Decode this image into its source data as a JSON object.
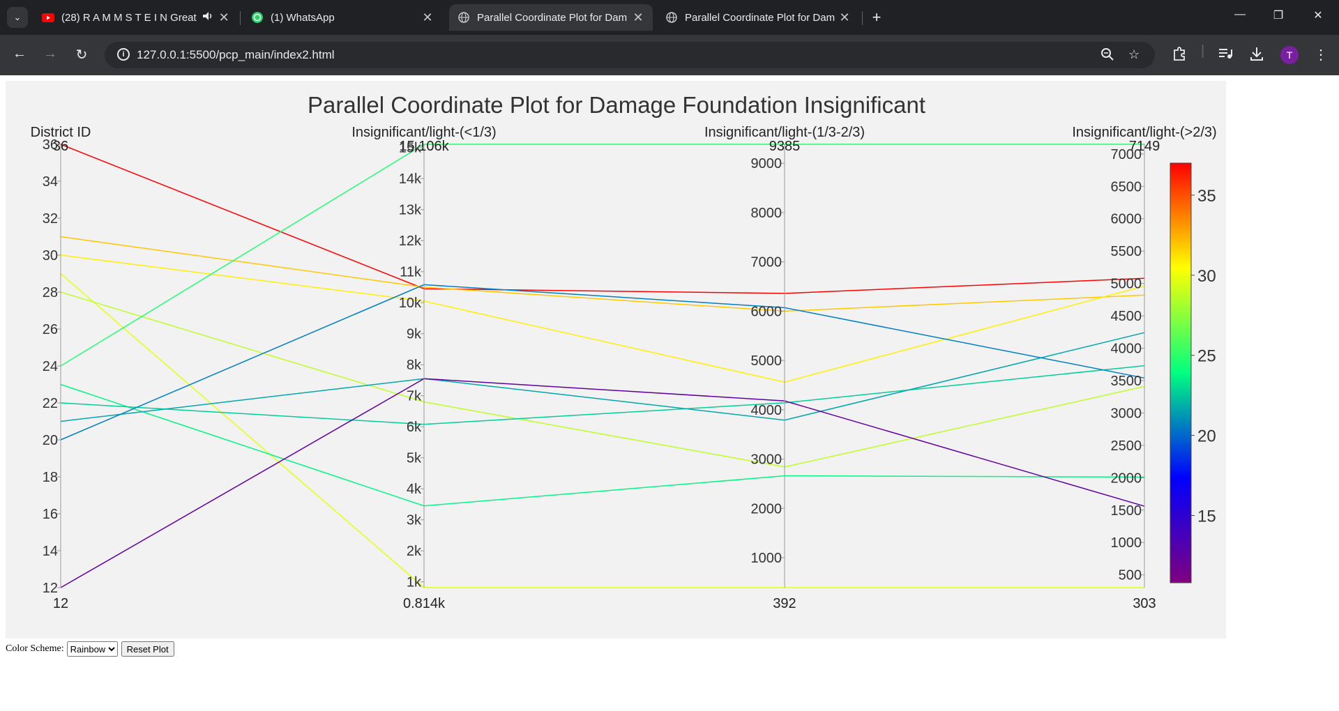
{
  "browser": {
    "tabs": [
      {
        "label": "(28) R A M M S T E I N Great",
        "favicon": "youtube-icon",
        "audio": true
      },
      {
        "label": "(1) WhatsApp",
        "favicon": "whatsapp-icon"
      },
      {
        "label": "Parallel Coordinate Plot for Dam",
        "favicon": "globe-icon",
        "active": true
      },
      {
        "label": "Parallel Coordinate Plot for Dam",
        "favicon": "globe-icon"
      }
    ],
    "url": "127.0.0.1:5500/pcp_main/index2.html",
    "profile_initial": "T"
  },
  "controls": {
    "color_scheme_label": "Color Scheme:",
    "color_scheme_value": "Rainbow",
    "reset_label": "Reset Plot"
  },
  "chart_data": {
    "type": "parallel-coordinates",
    "title": "Parallel Coordinate Plot for Damage Foundation Insignificant",
    "dimensions": [
      {
        "label": "District ID",
        "min": 12,
        "max": 36,
        "min_label": "12",
        "max_label": "36",
        "ticks": [
          12,
          14,
          16,
          18,
          20,
          22,
          24,
          26,
          28,
          30,
          32,
          34,
          36
        ],
        "tick_labels": [
          "12",
          "14",
          "16",
          "18",
          "20",
          "22",
          "24",
          "26",
          "28",
          "30",
          "32",
          "34",
          "36"
        ]
      },
      {
        "label": "Insignificant/light-(<1/3)",
        "min": 814,
        "max": 15106,
        "min_label": "0.814k",
        "max_label": "15.106k",
        "ticks": [
          1000,
          2000,
          3000,
          4000,
          5000,
          6000,
          7000,
          8000,
          9000,
          10000,
          11000,
          12000,
          13000,
          14000,
          15000
        ],
        "tick_labels": [
          "1k",
          "2k",
          "3k",
          "4k",
          "5k",
          "6k",
          "7k",
          "8k",
          "9k",
          "10k",
          "11k",
          "12k",
          "13k",
          "14k",
          "15k"
        ]
      },
      {
        "label": "Insignificant/light-(1/3-2/3)",
        "min": 392,
        "max": 9385,
        "min_label": "392",
        "max_label": "9385",
        "ticks": [
          1000,
          2000,
          3000,
          4000,
          5000,
          6000,
          7000,
          8000,
          9000
        ],
        "tick_labels": [
          "1000",
          "2000",
          "3000",
          "4000",
          "5000",
          "6000",
          "7000",
          "8000",
          "9000"
        ]
      },
      {
        "label": "Insignificant/light-(>2/3)",
        "min": 303,
        "max": 7149,
        "min_label": "303",
        "max_label": "7149",
        "ticks": [
          500,
          1000,
          1500,
          2000,
          2500,
          3000,
          3500,
          4000,
          4500,
          5000,
          5500,
          6000,
          6500,
          7000
        ],
        "tick_labels": [
          "500",
          "1000",
          "1500",
          "2000",
          "2500",
          "3000",
          "3500",
          "4000",
          "4500",
          "5000",
          "5500",
          "6000",
          "6500",
          "7000"
        ]
      }
    ],
    "lines": [
      {
        "values": [
          36,
          10450,
          6360,
          5080
        ]
      },
      {
        "values": [
          31,
          10500,
          6000,
          4820
        ]
      },
      {
        "values": [
          30,
          10050,
          4560,
          4960
        ]
      },
      {
        "values": [
          29,
          814,
          392,
          303
        ]
      },
      {
        "values": [
          28,
          6800,
          2840,
          3410
        ]
      },
      {
        "values": [
          24,
          15106,
          9385,
          7149
        ]
      },
      {
        "values": [
          23,
          3450,
          2660,
          2010
        ]
      },
      {
        "values": [
          22,
          6080,
          4140,
          3730
        ]
      },
      {
        "values": [
          21,
          7550,
          3790,
          4240
        ]
      },
      {
        "values": [
          20,
          10580,
          6070,
          3540
        ]
      },
      {
        "values": [
          12,
          7550,
          4180,
          1560
        ]
      }
    ],
    "colorbar": {
      "min": 12,
      "max": 36,
      "ticks": [
        15,
        20,
        25,
        30,
        35
      ],
      "tick_labels": [
        "15",
        "20",
        "25",
        "30",
        "35"
      ],
      "scale": "Rainbow"
    }
  }
}
